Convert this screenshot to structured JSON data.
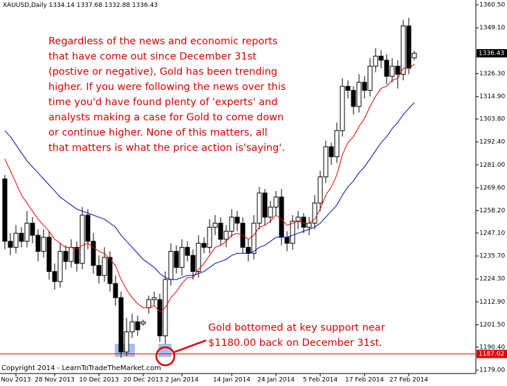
{
  "chart_data": {
    "type": "candlestick",
    "title": "XAUUSD,Daily",
    "categories": [
      null,
      null,
      "Nov 2013",
      null,
      null,
      null,
      null,
      null,
      null,
      "28 Nov 2013",
      null,
      null,
      null,
      null,
      null,
      null,
      null,
      "10 Dec 2013",
      null,
      null,
      null,
      null,
      null,
      null,
      null,
      "20 Dec 2013",
      null,
      null,
      null,
      null,
      null,
      null,
      "2 Jan 2014",
      null,
      null,
      null,
      null,
      null,
      null,
      null,
      null,
      "14 Jan 2014",
      null,
      null,
      null,
      null,
      null,
      null,
      null,
      "24 Jan 2014",
      null,
      null,
      null,
      null,
      null,
      null,
      null,
      "5 Feb 2014",
      null,
      null,
      null,
      null,
      null,
      null,
      null,
      "17 Feb 2014",
      null,
      null,
      null,
      null,
      null,
      null,
      null,
      "27 Feb 2014",
      null
    ],
    "open": [
      1274,
      1243,
      1240,
      1247,
      1243,
      1252,
      1246,
      1238,
      1245,
      1228,
      1223,
      1238,
      1233,
      1240,
      1232,
      1256,
      1243,
      1231,
      1226,
      1235,
      1222,
      1215,
      1188,
      1198,
      1203,
      1202,
      1210,
      1214,
      1214,
      1196,
      1224,
      1238,
      1230,
      1240,
      1236,
      1228,
      1242,
      1240,
      1250,
      1252,
      1244,
      1248,
      1255,
      1252,
      1240,
      1237,
      1252,
      1267,
      1255,
      1260,
      1265,
      1245,
      1242,
      1253,
      1255,
      1250,
      1252,
      1262,
      1275,
      1290,
      1285,
      1298,
      1320,
      1318,
      1310,
      1322,
      1318,
      1330,
      1335,
      1333,
      1325,
      1330,
      1326,
      1350,
      1334.14
    ],
    "high": [
      1276,
      1247,
      1251,
      1250,
      1258,
      1255,
      1249,
      1249,
      1248,
      1232,
      1242,
      1241,
      1244,
      1243,
      1260,
      1259,
      1247,
      1236,
      1240,
      1238,
      1226,
      1218,
      1205,
      1207,
      1206,
      1204,
      1216,
      1218,
      1217,
      1228,
      1242,
      1241,
      1244,
      1243,
      1239,
      1246,
      1245,
      1254,
      1256,
      1255,
      1251,
      1259,
      1258,
      1255,
      1244,
      1256,
      1270,
      1269,
      1263,
      1268,
      1269,
      1248,
      1256,
      1258,
      1257,
      1255,
      1266,
      1278,
      1293,
      1292,
      1302,
      1324,
      1323,
      1320,
      1326,
      1325,
      1334,
      1339,
      1338,
      1336,
      1334,
      1333,
      1353,
      1354,
      1337.68
    ],
    "low": [
      1239,
      1236,
      1237,
      1240,
      1240,
      1242,
      1233,
      1235,
      1224,
      1219,
      1220,
      1229,
      1230,
      1228,
      1229,
      1239,
      1227,
      1222,
      1223,
      1218,
      1211,
      1185,
      1186,
      1195,
      1196,
      1201,
      1207,
      1211,
      1193,
      1192,
      1221,
      1227,
      1226,
      1233,
      1224,
      1225,
      1237,
      1237,
      1246,
      1241,
      1240,
      1245,
      1248,
      1237,
      1233,
      1234,
      1249,
      1251,
      1252,
      1256,
      1241,
      1238,
      1239,
      1249,
      1247,
      1246,
      1249,
      1258,
      1272,
      1281,
      1282,
      1295,
      1314,
      1306,
      1307,
      1314,
      1315,
      1327,
      1329,
      1321,
      1322,
      1319,
      1323,
      1326,
      1332.88
    ],
    "close": [
      1243,
      1240,
      1247,
      1243,
      1252,
      1246,
      1238,
      1245,
      1228,
      1223,
      1238,
      1233,
      1240,
      1232,
      1256,
      1243,
      1231,
      1226,
      1235,
      1222,
      1215,
      1188,
      1198,
      1203,
      1199,
      1203,
      1214,
      1215,
      1196,
      1224,
      1238,
      1230,
      1240,
      1236,
      1228,
      1242,
      1240,
      1250,
      1252,
      1244,
      1248,
      1255,
      1252,
      1240,
      1237,
      1252,
      1267,
      1255,
      1260,
      1265,
      1245,
      1242,
      1253,
      1255,
      1250,
      1252,
      1262,
      1275,
      1290,
      1285,
      1298,
      1320,
      1318,
      1310,
      1322,
      1318,
      1330,
      1335,
      1333,
      1325,
      1330,
      1326,
      1350,
      1329,
      1336.43
    ],
    "series": [
      {
        "color": "#e00000",
        "values": [
          1284,
          1278,
          1272,
          1266,
          1262,
          1258,
          1254,
          1251,
          1248,
          1244,
          1242,
          1240,
          1240,
          1239,
          1241,
          1242,
          1240,
          1238,
          1237,
          1234,
          1231,
          1224,
          1219,
          1215,
          1212,
          1210,
          1210,
          1211,
          1208,
          1210,
          1215,
          1218,
          1222,
          1225,
          1225,
          1229,
          1232,
          1236,
          1240,
          1241,
          1243,
          1246,
          1247,
          1246,
          1244,
          1246,
          1250,
          1251,
          1253,
          1256,
          1254,
          1251,
          1252,
          1253,
          1252,
          1252,
          1254,
          1259,
          1266,
          1270,
          1276,
          1286,
          1292,
          1295,
          1300,
          1304,
          1310,
          1315,
          1319,
          1320,
          1323,
          1324,
          1329,
          1329,
          1331
        ]
      },
      {
        "color": "#0000b0",
        "values": [
          1298,
          1295,
          1291,
          1287,
          1283,
          1280,
          1277,
          1274,
          1271,
          1268,
          1265,
          1263,
          1261,
          1259,
          1258,
          1257,
          1256,
          1255,
          1254,
          1252,
          1250,
          1246,
          1243,
          1240,
          1237,
          1234,
          1232,
          1230,
          1227,
          1225,
          1224,
          1224,
          1225,
          1226,
          1226,
          1227,
          1228,
          1230,
          1232,
          1233,
          1234,
          1236,
          1237,
          1237,
          1237,
          1238,
          1240,
          1241,
          1243,
          1245,
          1245,
          1245,
          1246,
          1247,
          1248,
          1249,
          1250,
          1252,
          1255,
          1258,
          1261,
          1266,
          1270,
          1273,
          1277,
          1280,
          1284,
          1288,
          1292,
          1295,
          1299,
          1302,
          1306,
          1309,
          1312
        ]
      }
    ],
    "ylim": [
      1179,
      1360.5
    ],
    "yticks": [
      {
        "value": 1360.5,
        "label": "1360.50"
      },
      {
        "value": 1349.1,
        "label": "1349.10"
      },
      {
        "value": 1326.3,
        "label": "1326.30"
      },
      {
        "value": 1314.9,
        "label": "1314.90"
      },
      {
        "value": 1303.8,
        "label": "1303.80"
      },
      {
        "value": 1292.4,
        "label": "1292.40"
      },
      {
        "value": 1281,
        "label": "1281.00"
      },
      {
        "value": 1269.6,
        "label": "1269.60"
      },
      {
        "value": 1258.2,
        "label": "1258.20"
      },
      {
        "value": 1247.1,
        "label": "1247.10"
      },
      {
        "value": 1235.7,
        "label": "1235.70"
      },
      {
        "value": 1224.3,
        "label": "1224.30"
      },
      {
        "value": 1212.9,
        "label": "1212.90"
      },
      {
        "value": 1201.5,
        "label": "1201.50"
      },
      {
        "value": 1190.4,
        "label": "1190.40"
      },
      {
        "value": 1179,
        "label": "1179.00"
      }
    ],
    "hline": {
      "value": 1187.02,
      "label": "1187.02",
      "color": "#e00000"
    },
    "annotations": [
      {
        "lines": [
          "Regardless of the news and economic reports",
          "that have come out since December 31st",
          "(postive or negative), Gold has been trending",
          "higher. If you were following the news over this",
          "time you'd have found plenty of 'experts' and",
          "analysts making a case for Gold to come down",
          "or continue higher. None of this matters, all",
          "that matters is what the price action is'saying'."
        ]
      },
      {
        "lines": [
          "Gold bottomed at key support near",
          "$1180.00 back on December 31st."
        ]
      }
    ],
    "copyright": "Copyright 2014 - LearnToTradeTheMarket.com"
  }
}
